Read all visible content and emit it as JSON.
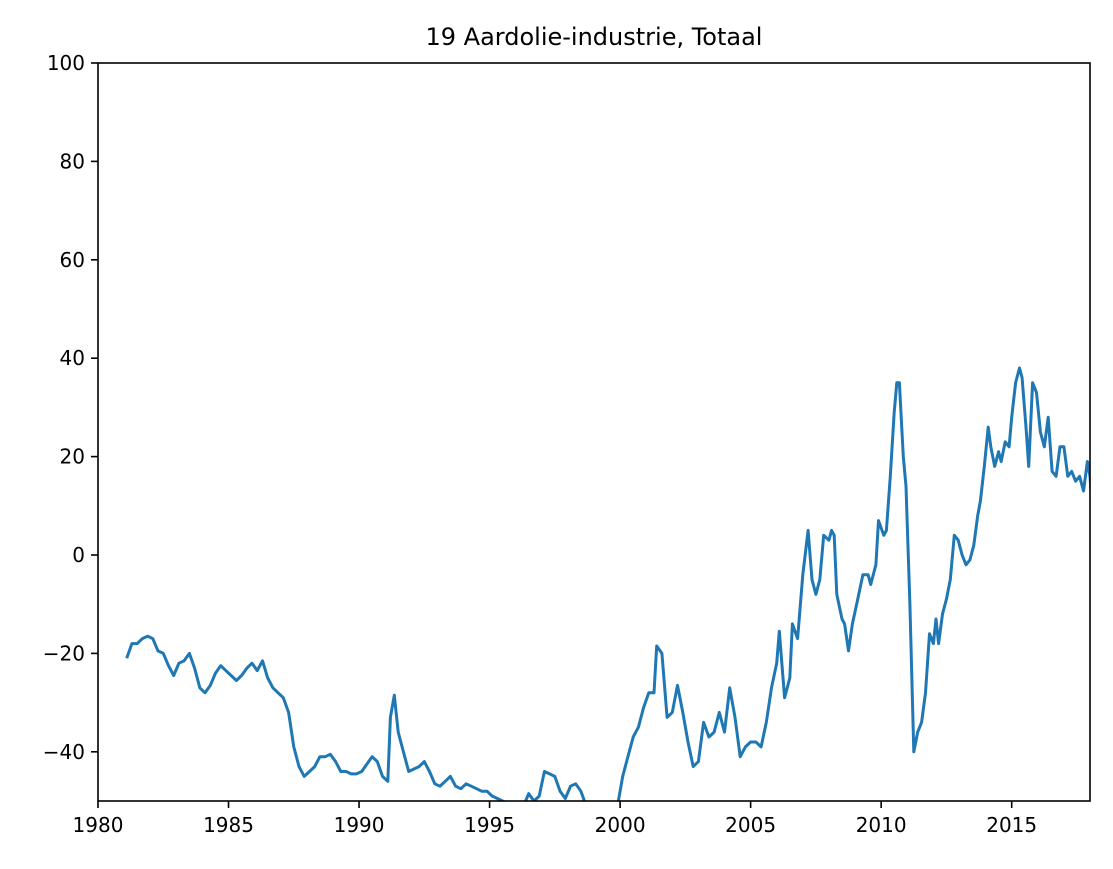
{
  "chart_data": {
    "type": "line",
    "title": "19 Aardolie-industrie, Totaal",
    "xlabel": "",
    "ylabel": "",
    "xlim": [
      1980,
      2018
    ],
    "ylim": [
      -50,
      100
    ],
    "x_ticks": [
      "1980",
      "1985",
      "1990",
      "1995",
      "2000",
      "2005",
      "2010",
      "2015"
    ],
    "y_ticks": [
      "100",
      "80",
      "60",
      "40",
      "20",
      "0",
      "−20",
      "−40"
    ],
    "grid": false,
    "color": "#1f77b4",
    "series": [
      {
        "points": [
          [
            1981.1,
            -21
          ],
          [
            1981.3,
            -18
          ],
          [
            1981.5,
            -18
          ],
          [
            1981.7,
            -17
          ],
          [
            1981.9,
            -16.5
          ],
          [
            1982.1,
            -17
          ],
          [
            1982.3,
            -19.5
          ],
          [
            1982.5,
            -20
          ],
          [
            1982.7,
            -22.5
          ],
          [
            1982.9,
            -24.5
          ],
          [
            1983.1,
            -22
          ],
          [
            1983.3,
            -21.5
          ],
          [
            1983.5,
            -20
          ],
          [
            1983.7,
            -23
          ],
          [
            1983.9,
            -27
          ],
          [
            1984.1,
            -28
          ],
          [
            1984.3,
            -26.5
          ],
          [
            1984.5,
            -24
          ],
          [
            1984.7,
            -22.5
          ],
          [
            1984.9,
            -23.5
          ],
          [
            1985.1,
            -24.5
          ],
          [
            1985.3,
            -25.5
          ],
          [
            1985.5,
            -24.5
          ],
          [
            1985.7,
            -23
          ],
          [
            1985.9,
            -22
          ],
          [
            1986.1,
            -23.5
          ],
          [
            1986.3,
            -21.5
          ],
          [
            1986.5,
            -25
          ],
          [
            1986.7,
            -27
          ],
          [
            1986.9,
            -28
          ],
          [
            1987.1,
            -29
          ],
          [
            1987.3,
            -32
          ],
          [
            1987.5,
            -39
          ],
          [
            1987.7,
            -43
          ],
          [
            1987.9,
            -45
          ],
          [
            1988.1,
            -44
          ],
          [
            1988.3,
            -43
          ],
          [
            1988.5,
            -41
          ],
          [
            1988.7,
            -41
          ],
          [
            1988.9,
            -40.5
          ],
          [
            1989.1,
            -42
          ],
          [
            1989.3,
            -44
          ],
          [
            1989.5,
            -44
          ],
          [
            1989.7,
            -44.5
          ],
          [
            1989.9,
            -44.5
          ],
          [
            1990.1,
            -44
          ],
          [
            1990.3,
            -42.5
          ],
          [
            1990.5,
            -41
          ],
          [
            1990.7,
            -42
          ],
          [
            1990.9,
            -45
          ],
          [
            1991.1,
            -46
          ],
          [
            1991.2,
            -33
          ],
          [
            1991.35,
            -28.5
          ],
          [
            1991.5,
            -36
          ],
          [
            1991.7,
            -40
          ],
          [
            1991.9,
            -44
          ],
          [
            1992.1,
            -43.5
          ],
          [
            1992.3,
            -43
          ],
          [
            1992.5,
            -42
          ],
          [
            1992.7,
            -44
          ],
          [
            1992.9,
            -46.5
          ],
          [
            1993.1,
            -47
          ],
          [
            1993.3,
            -46
          ],
          [
            1993.5,
            -45
          ],
          [
            1993.7,
            -47
          ],
          [
            1993.9,
            -47.5
          ],
          [
            1994.1,
            -46.5
          ],
          [
            1994.3,
            -47
          ],
          [
            1994.5,
            -47.5
          ],
          [
            1994.7,
            -48
          ],
          [
            1994.9,
            -48
          ],
          [
            1995.1,
            -49
          ],
          [
            1995.3,
            -49.5
          ],
          [
            1995.5,
            -50
          ],
          [
            1995.7,
            -50.5
          ],
          [
            1996.1,
            -52
          ],
          [
            1996.3,
            -51
          ],
          [
            1996.5,
            -48.5
          ],
          [
            1996.7,
            -50
          ],
          [
            1996.9,
            -49
          ],
          [
            1997.1,
            -44
          ],
          [
            1997.3,
            -44.5
          ],
          [
            1997.5,
            -45
          ],
          [
            1997.7,
            -48
          ],
          [
            1997.9,
            -49.5
          ],
          [
            1998.1,
            -47
          ],
          [
            1998.3,
            -46.5
          ],
          [
            1998.5,
            -48
          ],
          [
            1998.7,
            -51
          ],
          [
            1999.0,
            -53
          ],
          [
            1999.5,
            -52
          ],
          [
            1999.9,
            -51
          ],
          [
            2000.1,
            -45
          ],
          [
            2000.3,
            -41
          ],
          [
            2000.5,
            -37
          ],
          [
            2000.7,
            -35
          ],
          [
            2000.9,
            -31
          ],
          [
            2001.1,
            -28
          ],
          [
            2001.3,
            -28
          ],
          [
            2001.4,
            -18.5
          ],
          [
            2001.6,
            -20
          ],
          [
            2001.8,
            -33
          ],
          [
            2002.0,
            -32
          ],
          [
            2002.2,
            -26.5
          ],
          [
            2002.4,
            -32
          ],
          [
            2002.6,
            -38
          ],
          [
            2002.8,
            -43
          ],
          [
            2003.0,
            -42
          ],
          [
            2003.2,
            -34
          ],
          [
            2003.4,
            -37
          ],
          [
            2003.6,
            -36
          ],
          [
            2003.8,
            -32
          ],
          [
            2004.0,
            -36
          ],
          [
            2004.2,
            -27
          ],
          [
            2004.4,
            -33
          ],
          [
            2004.6,
            -41
          ],
          [
            2004.8,
            -39
          ],
          [
            2005.0,
            -38
          ],
          [
            2005.2,
            -38
          ],
          [
            2005.4,
            -39
          ],
          [
            2005.6,
            -34
          ],
          [
            2005.8,
            -27
          ],
          [
            2006.0,
            -22
          ],
          [
            2006.1,
            -15.5
          ],
          [
            2006.3,
            -29
          ],
          [
            2006.5,
            -25
          ],
          [
            2006.6,
            -14
          ],
          [
            2006.8,
            -17
          ],
          [
            2007.0,
            -4
          ],
          [
            2007.2,
            5
          ],
          [
            2007.35,
            -5
          ],
          [
            2007.5,
            -8
          ],
          [
            2007.65,
            -5
          ],
          [
            2007.8,
            4
          ],
          [
            2008.0,
            3
          ],
          [
            2008.1,
            5
          ],
          [
            2008.2,
            4
          ],
          [
            2008.3,
            -8
          ],
          [
            2008.5,
            -13
          ],
          [
            2008.6,
            -14
          ],
          [
            2008.75,
            -19.5
          ],
          [
            2008.9,
            -14
          ],
          [
            2009.1,
            -9
          ],
          [
            2009.3,
            -4
          ],
          [
            2009.5,
            -4
          ],
          [
            2009.6,
            -6
          ],
          [
            2009.8,
            -2
          ],
          [
            2009.9,
            7
          ],
          [
            2010.1,
            4
          ],
          [
            2010.2,
            5
          ],
          [
            2010.35,
            16
          ],
          [
            2010.5,
            29
          ],
          [
            2010.6,
            35
          ],
          [
            2010.7,
            35
          ],
          [
            2010.85,
            20
          ],
          [
            2010.95,
            14
          ],
          [
            2011.1,
            -10
          ],
          [
            2011.25,
            -40
          ],
          [
            2011.4,
            -36
          ],
          [
            2011.55,
            -34
          ],
          [
            2011.7,
            -28
          ],
          [
            2011.85,
            -16
          ],
          [
            2012.0,
            -18
          ],
          [
            2012.1,
            -13
          ],
          [
            2012.2,
            -18
          ],
          [
            2012.35,
            -12
          ],
          [
            2012.5,
            -9
          ],
          [
            2012.65,
            -5
          ],
          [
            2012.8,
            4
          ],
          [
            2012.95,
            3
          ],
          [
            2013.1,
            0
          ],
          [
            2013.25,
            -2
          ],
          [
            2013.4,
            -1
          ],
          [
            2013.55,
            2
          ],
          [
            2013.7,
            8
          ],
          [
            2013.8,
            11
          ],
          [
            2013.95,
            18
          ],
          [
            2014.1,
            26
          ],
          [
            2014.2,
            22
          ],
          [
            2014.35,
            18
          ],
          [
            2014.5,
            21
          ],
          [
            2014.6,
            19
          ],
          [
            2014.75,
            23
          ],
          [
            2014.9,
            22
          ],
          [
            2015.0,
            28
          ],
          [
            2015.15,
            35
          ],
          [
            2015.3,
            38
          ],
          [
            2015.4,
            36
          ],
          [
            2015.55,
            26
          ],
          [
            2015.65,
            18
          ],
          [
            2015.8,
            35
          ],
          [
            2015.95,
            33
          ],
          [
            2016.1,
            25
          ],
          [
            2016.25,
            22
          ],
          [
            2016.4,
            28
          ],
          [
            2016.55,
            17
          ],
          [
            2016.7,
            16
          ],
          [
            2016.85,
            22
          ],
          [
            2017.0,
            22
          ],
          [
            2017.15,
            16
          ],
          [
            2017.3,
            17
          ],
          [
            2017.45,
            15
          ],
          [
            2017.6,
            16
          ],
          [
            2017.75,
            13
          ],
          [
            2017.9,
            19
          ],
          [
            2018.0,
            16
          ],
          [
            2018.1,
            8
          ],
          [
            2018.25,
            0
          ]
        ]
      }
    ]
  }
}
